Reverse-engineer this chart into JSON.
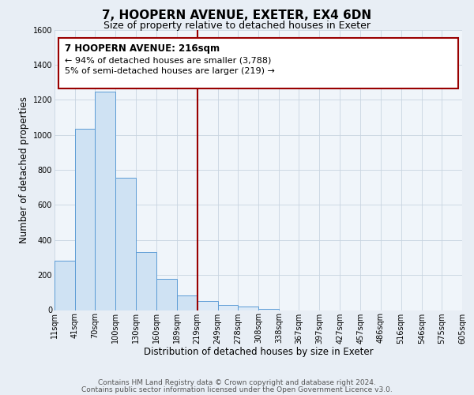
{
  "title": "7, HOOPERN AVENUE, EXETER, EX4 6DN",
  "subtitle": "Size of property relative to detached houses in Exeter",
  "xlabel": "Distribution of detached houses by size in Exeter",
  "ylabel": "Number of detached properties",
  "bin_edges": [
    11,
    41,
    70,
    100,
    130,
    160,
    189,
    219,
    249,
    278,
    308,
    338,
    367,
    397,
    427,
    457,
    486,
    516,
    546,
    575,
    605
  ],
  "bin_heights": [
    280,
    1035,
    1245,
    755,
    330,
    180,
    85,
    50,
    30,
    20,
    5,
    0,
    0,
    0,
    0,
    0,
    0,
    0,
    0,
    0
  ],
  "bar_facecolor_left": "#cfe2f3",
  "bar_facecolor_right": "#ddeaf7",
  "bar_edgecolor": "#5b9bd5",
  "vline_x": 219,
  "vline_color": "#990000",
  "annot_line1": "7 HOOPERN AVENUE: 216sqm",
  "annot_line2": "← 94% of detached houses are smaller (3,788)",
  "annot_line3": "5% of semi-detached houses are larger (219) →",
  "ylim": [
    0,
    1600
  ],
  "yticks": [
    0,
    200,
    400,
    600,
    800,
    1000,
    1200,
    1400,
    1600
  ],
  "tick_labels": [
    "11sqm",
    "41sqm",
    "70sqm",
    "100sqm",
    "130sqm",
    "160sqm",
    "189sqm",
    "219sqm",
    "249sqm",
    "278sqm",
    "308sqm",
    "338sqm",
    "367sqm",
    "397sqm",
    "427sqm",
    "457sqm",
    "486sqm",
    "516sqm",
    "546sqm",
    "575sqm",
    "605sqm"
  ],
  "footer_line1": "Contains HM Land Registry data © Crown copyright and database right 2024.",
  "footer_line2": "Contains public sector information licensed under the Open Government Licence v3.0.",
  "bg_color": "#e8eef5",
  "plot_bg_color": "#f0f5fa",
  "grid_color": "#c8d4e0",
  "title_fontsize": 11,
  "subtitle_fontsize": 9,
  "axis_label_fontsize": 8.5,
  "tick_fontsize": 7,
  "footer_fontsize": 6.5
}
